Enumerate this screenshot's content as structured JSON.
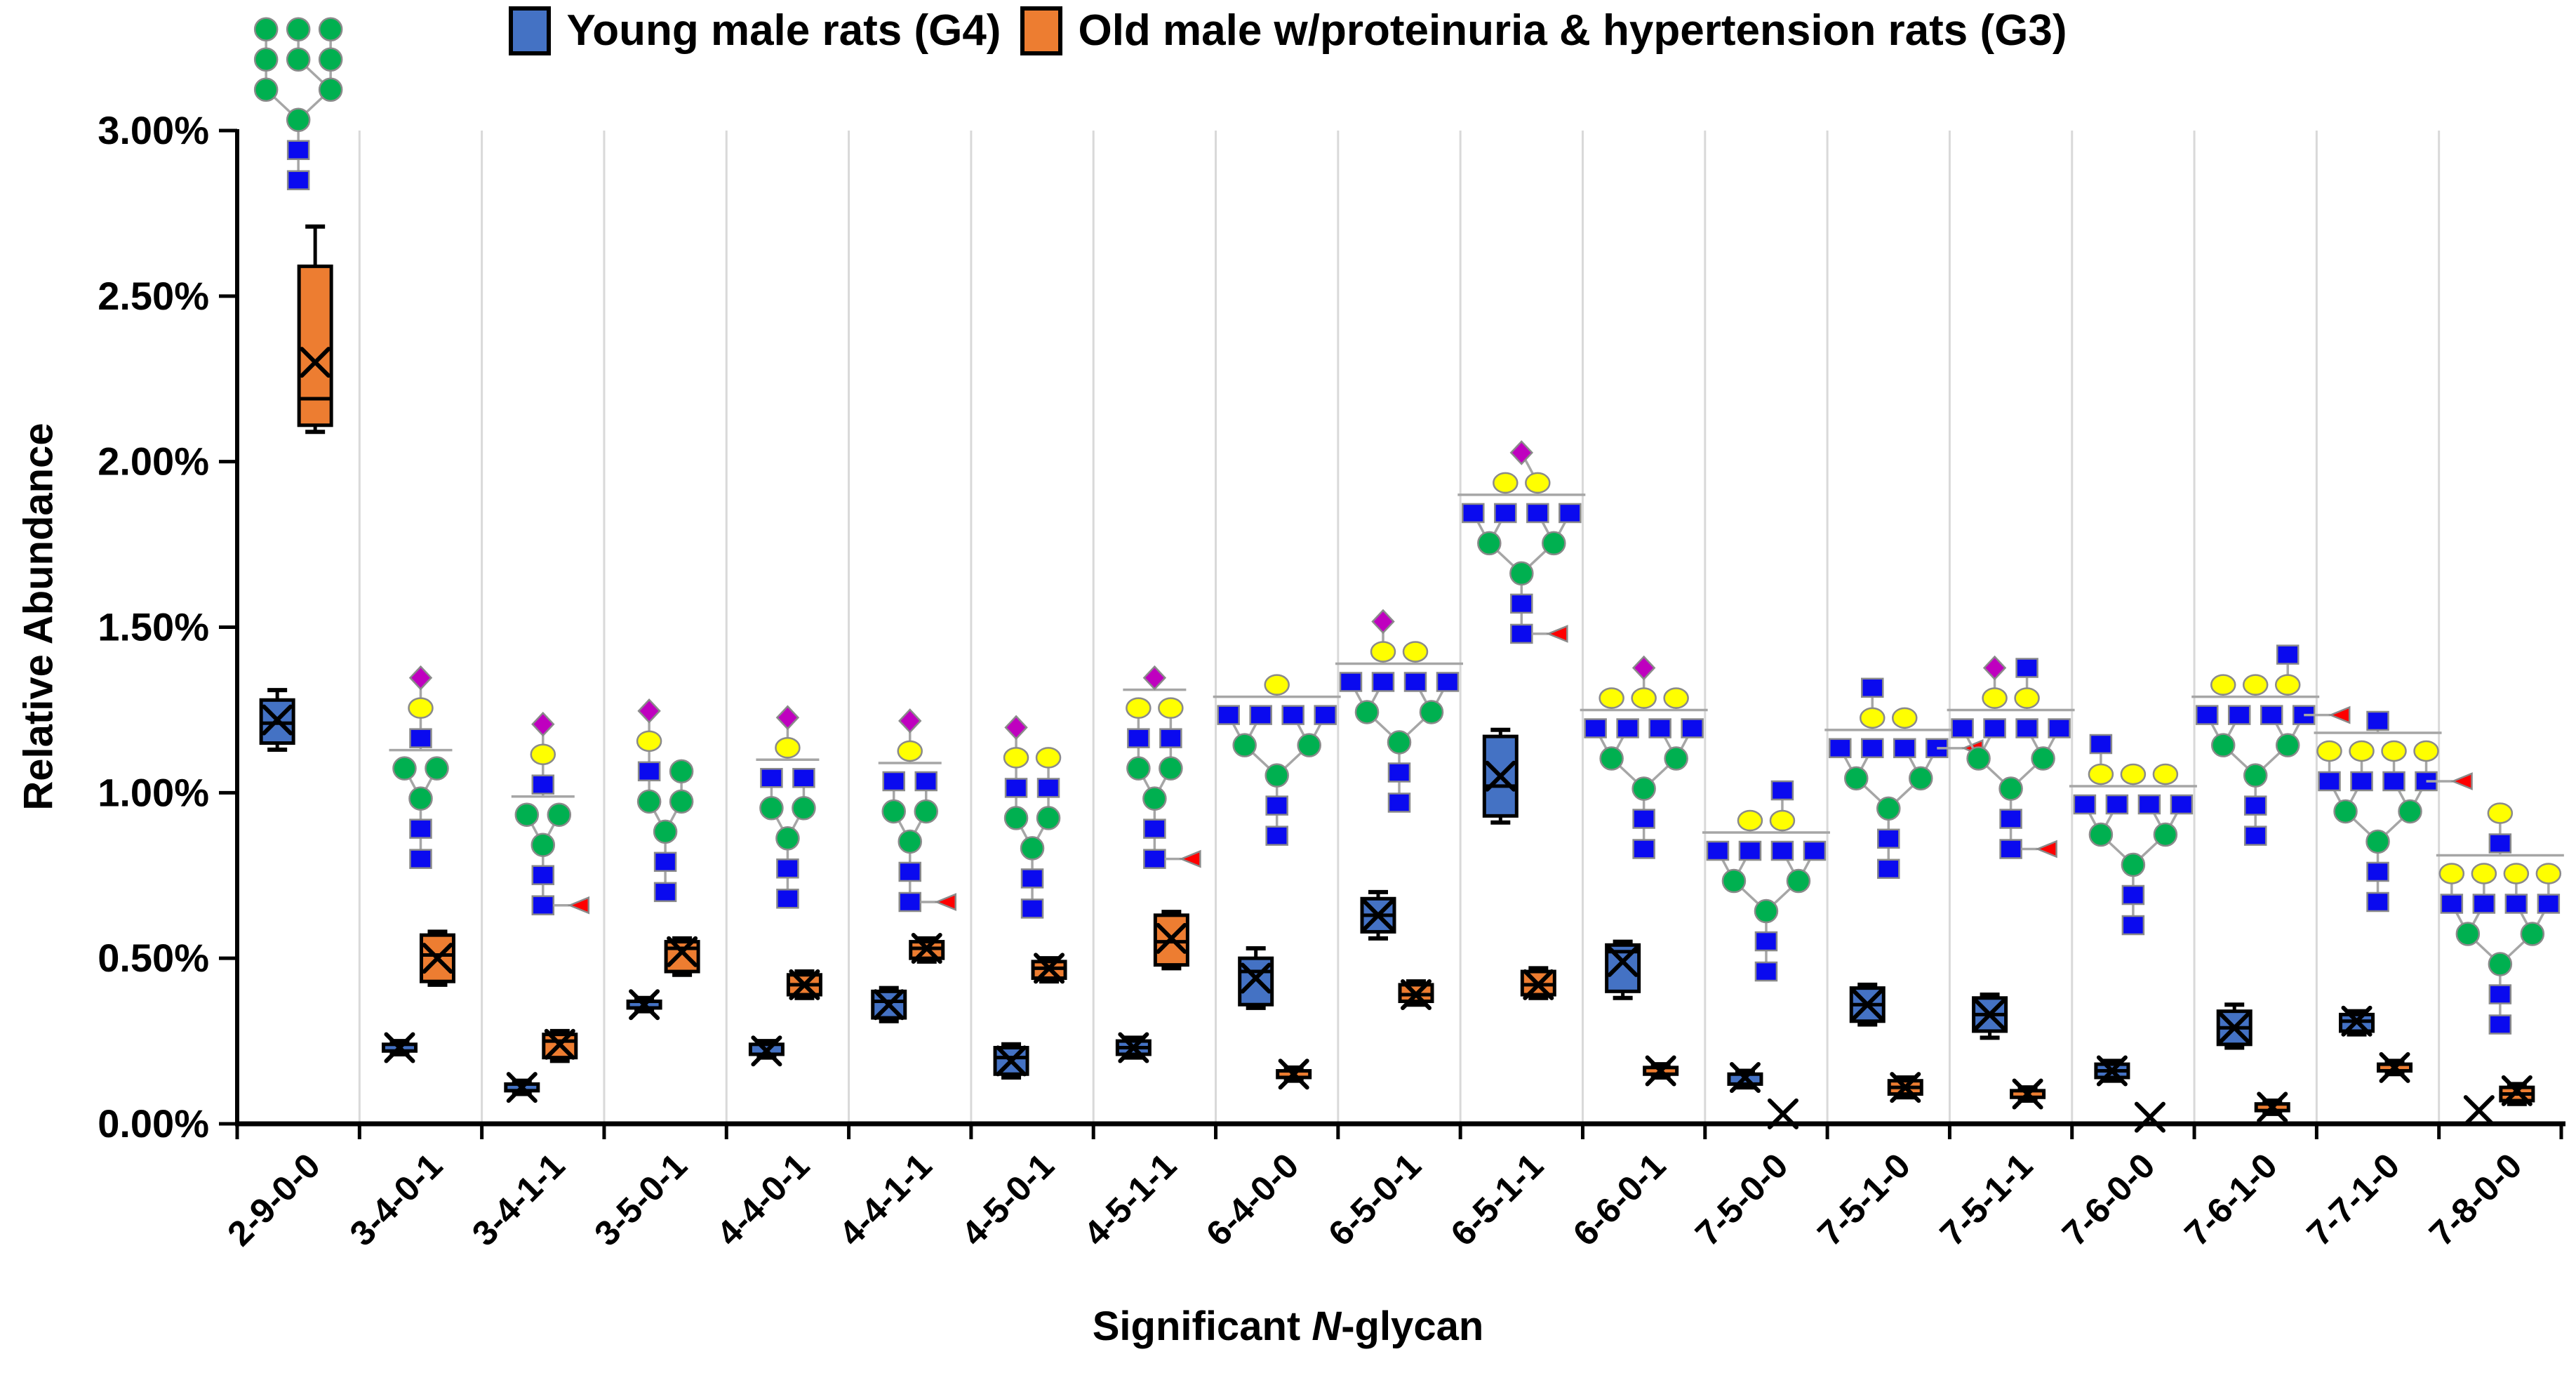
{
  "legend": {
    "items": [
      {
        "label": "Young male rats (G4)",
        "color": "#4472C4"
      },
      {
        "label": "Old male w/proteinuria & hypertension rats (G3)",
        "color": "#ED7D31"
      }
    ]
  },
  "y_axis": {
    "title": "Relative Abundance",
    "tick_labels": [
      "3.00%",
      "2.50%",
      "2.00%",
      "1.50%",
      "1.00%",
      "0.50%",
      "0.00%"
    ]
  },
  "x_axis": {
    "title_prefix": "Significant ",
    "title_italic": "N",
    "title_suffix": "-glycan"
  },
  "colors": {
    "young_blue": "#4472C4",
    "old_orange": "#ED7D31",
    "axis_black": "#000000",
    "separator_gray": "#D9D9D9",
    "connector_gray": "#A6A6A6",
    "mannose_green": "#00B050",
    "glcnac_blue": "#0A0AEF",
    "galactose_yellow": "#FFFF00",
    "sialic_purple": "#BF00BF",
    "fucose_red": "#FF0000"
  },
  "chart_data": {
    "type": "box",
    "title": "",
    "xlabel": "Significant N-glycan",
    "ylabel": "Relative Abundance",
    "ylim": [
      0.0,
      3.0
    ],
    "ytick_step": 0.5,
    "grid": "vertical-category-separators",
    "legend_position": "top-center",
    "categories": [
      "2-9-0-0",
      "3-4-0-1",
      "3-4-1-1",
      "3-5-0-1",
      "4-4-0-1",
      "4-4-1-1",
      "4-5-0-1",
      "4-5-1-1",
      "6-4-0-0",
      "6-5-0-1",
      "6-5-1-1",
      "6-6-0-1",
      "7-5-0-0",
      "7-5-1-0",
      "7-5-1-1",
      "7-6-0-0",
      "7-6-1-0",
      "7-7-1-0",
      "7-8-0-0"
    ],
    "units": "percent relative abundance",
    "series": [
      {
        "name": "Young male rats (G4)",
        "color": "#4472C4",
        "boxes": [
          {
            "lo": 1.13,
            "q1": 1.15,
            "median": 1.21,
            "mean": 1.22,
            "q3": 1.28,
            "hi": 1.31
          },
          {
            "lo": 0.21,
            "q1": 0.22,
            "median": 0.23,
            "mean": 0.23,
            "q3": 0.24,
            "hi": 0.25
          },
          {
            "lo": 0.09,
            "q1": 0.1,
            "median": 0.11,
            "mean": 0.11,
            "q3": 0.12,
            "hi": 0.13
          },
          {
            "lo": 0.34,
            "q1": 0.35,
            "median": 0.36,
            "mean": 0.36,
            "q3": 0.37,
            "hi": 0.38
          },
          {
            "lo": 0.2,
            "q1": 0.21,
            "median": 0.22,
            "mean": 0.22,
            "q3": 0.24,
            "hi": 0.25
          },
          {
            "lo": 0.31,
            "q1": 0.32,
            "median": 0.37,
            "mean": 0.36,
            "q3": 0.4,
            "hi": 0.41
          },
          {
            "lo": 0.14,
            "q1": 0.15,
            "median": 0.2,
            "mean": 0.19,
            "q3": 0.23,
            "hi": 0.24
          },
          {
            "lo": 0.2,
            "q1": 0.21,
            "median": 0.23,
            "mean": 0.23,
            "q3": 0.25,
            "hi": 0.26
          },
          {
            "lo": 0.35,
            "q1": 0.36,
            "median": 0.46,
            "mean": 0.44,
            "q3": 0.5,
            "hi": 0.53
          },
          {
            "lo": 0.56,
            "q1": 0.58,
            "median": 0.63,
            "mean": 0.63,
            "q3": 0.68,
            "hi": 0.7
          },
          {
            "lo": 0.91,
            "q1": 0.93,
            "median": 1.02,
            "mean": 1.05,
            "q3": 1.17,
            "hi": 1.19
          },
          {
            "lo": 0.38,
            "q1": 0.4,
            "median": 0.52,
            "mean": 0.49,
            "q3": 0.54,
            "hi": 0.55
          },
          {
            "lo": 0.11,
            "q1": 0.12,
            "median": 0.14,
            "mean": 0.14,
            "q3": 0.15,
            "hi": 0.16
          },
          {
            "lo": 0.3,
            "q1": 0.31,
            "median": 0.36,
            "mean": 0.36,
            "q3": 0.41,
            "hi": 0.42
          },
          {
            "lo": 0.26,
            "q1": 0.28,
            "median": 0.33,
            "mean": 0.33,
            "q3": 0.38,
            "hi": 0.39
          },
          {
            "lo": 0.13,
            "q1": 0.14,
            "median": 0.16,
            "mean": 0.16,
            "q3": 0.18,
            "hi": 0.19
          },
          {
            "lo": 0.23,
            "q1": 0.24,
            "median": 0.29,
            "mean": 0.29,
            "q3": 0.34,
            "hi": 0.36
          },
          {
            "lo": 0.27,
            "q1": 0.28,
            "median": 0.31,
            "mean": 0.31,
            "q3": 0.33,
            "hi": 0.34
          },
          {
            "lo": 0.04,
            "q1": 0.04,
            "median": 0.04,
            "mean": 0.04,
            "q3": 0.04,
            "hi": 0.04
          }
        ]
      },
      {
        "name": "Old male w/proteinuria & hypertension rats (G3)",
        "color": "#ED7D31",
        "boxes": [
          {
            "lo": 2.09,
            "q1": 2.11,
            "median": 2.19,
            "mean": 2.3,
            "q3": 2.59,
            "hi": 2.71
          },
          {
            "lo": 0.42,
            "q1": 0.43,
            "median": 0.51,
            "mean": 0.5,
            "q3": 0.57,
            "hi": 0.58
          },
          {
            "lo": 0.19,
            "q1": 0.2,
            "median": 0.25,
            "mean": 0.24,
            "q3": 0.27,
            "hi": 0.28
          },
          {
            "lo": 0.45,
            "q1": 0.46,
            "median": 0.53,
            "mean": 0.52,
            "q3": 0.55,
            "hi": 0.56
          },
          {
            "lo": 0.38,
            "q1": 0.39,
            "median": 0.42,
            "mean": 0.42,
            "q3": 0.45,
            "hi": 0.46
          },
          {
            "lo": 0.49,
            "q1": 0.5,
            "median": 0.53,
            "mean": 0.53,
            "q3": 0.55,
            "hi": 0.56
          },
          {
            "lo": 0.43,
            "q1": 0.44,
            "median": 0.47,
            "mean": 0.47,
            "q3": 0.49,
            "hi": 0.5
          },
          {
            "lo": 0.47,
            "q1": 0.48,
            "median": 0.55,
            "mean": 0.56,
            "q3": 0.63,
            "hi": 0.64
          },
          {
            "lo": 0.13,
            "q1": 0.14,
            "median": 0.15,
            "mean": 0.15,
            "q3": 0.16,
            "hi": 0.17
          },
          {
            "lo": 0.36,
            "q1": 0.37,
            "median": 0.39,
            "mean": 0.39,
            "q3": 0.42,
            "hi": 0.43
          },
          {
            "lo": 0.38,
            "q1": 0.39,
            "median": 0.42,
            "mean": 0.42,
            "q3": 0.46,
            "hi": 0.47
          },
          {
            "lo": 0.14,
            "q1": 0.15,
            "median": 0.16,
            "mean": 0.16,
            "q3": 0.17,
            "hi": 0.18
          },
          {
            "lo": 0.03,
            "q1": 0.03,
            "median": 0.03,
            "mean": 0.03,
            "q3": 0.03,
            "hi": 0.03
          },
          {
            "lo": 0.08,
            "q1": 0.09,
            "median": 0.11,
            "mean": 0.11,
            "q3": 0.13,
            "hi": 0.14
          },
          {
            "lo": 0.07,
            "q1": 0.08,
            "median": 0.09,
            "mean": 0.09,
            "q3": 0.1,
            "hi": 0.11
          },
          {
            "lo": 0.02,
            "q1": 0.02,
            "median": 0.02,
            "mean": 0.02,
            "q3": 0.02,
            "hi": 0.02
          },
          {
            "lo": 0.03,
            "q1": 0.04,
            "median": 0.05,
            "mean": 0.05,
            "q3": 0.06,
            "hi": 0.07
          },
          {
            "lo": 0.15,
            "q1": 0.16,
            "median": 0.17,
            "mean": 0.17,
            "q3": 0.18,
            "hi": 0.19
          },
          {
            "lo": 0.06,
            "q1": 0.07,
            "median": 0.09,
            "mean": 0.1,
            "q3": 0.11,
            "hi": 0.12
          }
        ]
      }
    ],
    "glycan_annotations": [
      {
        "category": "2-9-0-0",
        "bottom_pct": 2.85,
        "bracket_row": -1,
        "rows": [
          [
            "G",
            "G",
            "G"
          ],
          [
            "G",
            "G",
            "G"
          ],
          [
            "G",
            "G"
          ],
          [
            "G"
          ],
          [
            "B"
          ],
          [
            "B"
          ]
        ]
      },
      {
        "category": "3-4-0-1",
        "bottom_pct": 0.8,
        "bracket_row": 3,
        "rows": [
          [
            "P"
          ],
          [
            "Y"
          ],
          [
            "B"
          ],
          [
            "G",
            "G"
          ],
          [
            "G"
          ],
          [
            "B"
          ],
          [
            "B"
          ]
        ]
      },
      {
        "category": "3-4-1-1",
        "bottom_pct": 0.66,
        "bracket_row": 3,
        "rows": [
          [
            "P"
          ],
          [
            "Y"
          ],
          [
            "B"
          ],
          [
            "G",
            "G"
          ],
          [
            "G"
          ],
          [
            "B"
          ],
          [
            "B+R"
          ]
        ]
      },
      {
        "category": "3-5-0-1",
        "bottom_pct": 0.7,
        "bracket_row": -1,
        "rows": [
          [
            "P",
            "-"
          ],
          [
            "Y",
            "-"
          ],
          [
            "B",
            "G"
          ],
          [
            "G",
            "G"
          ],
          [
            "G"
          ],
          [
            "B"
          ],
          [
            "B"
          ]
        ]
      },
      {
        "category": "4-4-0-1",
        "bottom_pct": 0.68,
        "bracket_row": 2,
        "rows": [
          [
            "P"
          ],
          [
            "Y"
          ],
          [
            "B",
            "B"
          ],
          [
            "G",
            "G"
          ],
          [
            "G"
          ],
          [
            "B"
          ],
          [
            "B"
          ]
        ]
      },
      {
        "category": "4-4-1-1",
        "bottom_pct": 0.67,
        "bracket_row": 2,
        "rows": [
          [
            "P"
          ],
          [
            "Y"
          ],
          [
            "B",
            "B"
          ],
          [
            "G",
            "G"
          ],
          [
            "G"
          ],
          [
            "B"
          ],
          [
            "B+R"
          ]
        ]
      },
      {
        "category": "4-5-0-1",
        "bottom_pct": 0.65,
        "bracket_row": -1,
        "rows": [
          [
            "P",
            "-"
          ],
          [
            "Y",
            "Y"
          ],
          [
            "B",
            "B"
          ],
          [
            "G",
            "G"
          ],
          [
            "G"
          ],
          [
            "B"
          ],
          [
            "B"
          ]
        ]
      },
      {
        "category": "4-5-1-1",
        "bottom_pct": 0.8,
        "bracket_row": 1,
        "rows": [
          [
            "P"
          ],
          [
            "Y",
            "Y"
          ],
          [
            "B",
            "B"
          ],
          [
            "G",
            "G"
          ],
          [
            "G"
          ],
          [
            "B"
          ],
          [
            "B+R"
          ]
        ]
      },
      {
        "category": "6-4-0-0",
        "bottom_pct": 0.87,
        "bracket_row": 1,
        "rows": [
          [
            "Y"
          ],
          [
            "B",
            "B",
            "B",
            "B"
          ],
          [
            "G",
            "G"
          ],
          [
            "G"
          ],
          [
            "B"
          ],
          [
            "B"
          ]
        ]
      },
      {
        "category": "6-5-0-1",
        "bottom_pct": 0.97,
        "bracket_row": 2,
        "rows": [
          [
            "P",
            "-"
          ],
          [
            "Y",
            "Y"
          ],
          [
            "B",
            "B",
            "B",
            "B"
          ],
          [
            "G",
            "G"
          ],
          [
            "G"
          ],
          [
            "B"
          ],
          [
            "B"
          ]
        ]
      },
      {
        "category": "6-5-1-1",
        "bottom_pct": 1.48,
        "bracket_row": 2,
        "rows": [
          [
            "P"
          ],
          [
            "Y",
            "Y"
          ],
          [
            "B",
            "B",
            "B",
            "B"
          ],
          [
            "G",
            "G"
          ],
          [
            "G"
          ],
          [
            "B"
          ],
          [
            "B+R"
          ]
        ]
      },
      {
        "category": "6-6-0-1",
        "bottom_pct": 0.83,
        "bracket_row": 2,
        "rows": [
          [
            "-",
            "P",
            "-"
          ],
          [
            "Y",
            "Y",
            "Y"
          ],
          [
            "B",
            "B",
            "B",
            "B"
          ],
          [
            "G",
            "G"
          ],
          [
            "G"
          ],
          [
            "B"
          ],
          [
            "B"
          ]
        ]
      },
      {
        "category": "7-5-0-0",
        "bottom_pct": 0.46,
        "bracket_row": 2,
        "rows": [
          [
            "-",
            "B"
          ],
          [
            "Y",
            "Y"
          ],
          [
            "B",
            "B",
            "B",
            "B"
          ],
          [
            "G",
            "G"
          ],
          [
            "G"
          ],
          [
            "B"
          ],
          [
            "B"
          ]
        ]
      },
      {
        "category": "7-5-1-0",
        "bottom_pct": 0.77,
        "bracket_row": 2,
        "rows": [
          [
            "B",
            "-"
          ],
          [
            "Y",
            "Y"
          ],
          [
            "B",
            "B",
            "B",
            "B",
            "R"
          ],
          [
            "G",
            "G"
          ],
          [
            "G"
          ],
          [
            "B"
          ],
          [
            "B"
          ]
        ]
      },
      {
        "category": "7-5-1-1",
        "bottom_pct": 0.83,
        "bracket_row": 2,
        "rows": [
          [
            "P",
            "B"
          ],
          [
            "Y",
            "Y"
          ],
          [
            "B",
            "B",
            "B",
            "B"
          ],
          [
            "G",
            "G"
          ],
          [
            "G"
          ],
          [
            "B"
          ],
          [
            "B+R"
          ]
        ]
      },
      {
        "category": "7-6-0-0",
        "bottom_pct": 0.6,
        "bracket_row": 2,
        "rows": [
          [
            "B",
            "-",
            "-"
          ],
          [
            "Y",
            "Y",
            "Y"
          ],
          [
            "B",
            "B",
            "B",
            "B"
          ],
          [
            "G",
            "G"
          ],
          [
            "G"
          ],
          [
            "B"
          ],
          [
            "B"
          ]
        ]
      },
      {
        "category": "7-6-1-0",
        "bottom_pct": 0.87,
        "bracket_row": 2,
        "rows": [
          [
            "-",
            "-",
            "B"
          ],
          [
            "Y",
            "Y",
            "Y"
          ],
          [
            "B",
            "B",
            "B",
            "B",
            "R"
          ],
          [
            "G",
            "G"
          ],
          [
            "G"
          ],
          [
            "B"
          ],
          [
            "B"
          ]
        ]
      },
      {
        "category": "7-7-1-0",
        "bottom_pct": 0.67,
        "bracket_row": 1,
        "rows": [
          [
            "B"
          ],
          [
            "Y",
            "Y",
            "Y",
            "Y"
          ],
          [
            "B",
            "B",
            "B",
            "B",
            "R"
          ],
          [
            "G",
            "G"
          ],
          [
            "G"
          ],
          [
            "B"
          ],
          [
            "B"
          ]
        ]
      },
      {
        "category": "7-8-0-0",
        "bottom_pct": 0.3,
        "bracket_row": 2,
        "rows": [
          [
            "Y"
          ],
          [
            "B"
          ],
          [
            "Y",
            "Y",
            "Y",
            "Y"
          ],
          [
            "B",
            "B",
            "B",
            "B"
          ],
          [
            "G",
            "G"
          ],
          [
            "G"
          ],
          [
            "B"
          ],
          [
            "B"
          ]
        ]
      }
    ]
  }
}
